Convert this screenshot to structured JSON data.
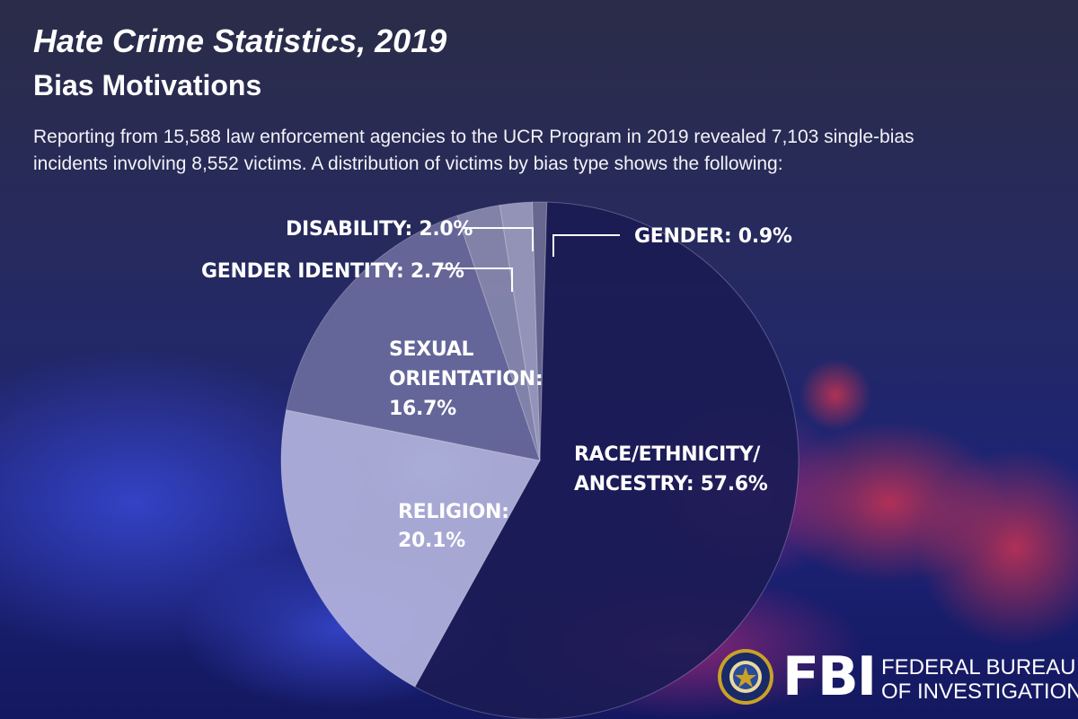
{
  "header": {
    "title": "Hate Crime Statistics, 2019",
    "subtitle": "Bias Motivations",
    "intro_line1": "Reporting from 15,588 law enforcement agencies to the UCR Program in 2019 revealed 7,103 single-bias",
    "intro_line2": "incidents involving 8,552 victims. A distribution of victims by bias type shows the following:"
  },
  "footer": {
    "logo_letters": "FBI",
    "agency_line1": "FEDERAL BUREAU",
    "agency_line2": "OF INVESTIGATION"
  },
  "chart_data": {
    "type": "pie",
    "slices": [
      {
        "label": "GENDER: 0.9%",
        "value": 0.9,
        "color": "#6c6c94"
      },
      {
        "label": "RACE/ETHNICITY/ ANCESTRY: 57.6%",
        "label_lines": [
          "RACE/ETHNICITY/",
          "ANCESTRY: 57.6%"
        ],
        "value": 57.6,
        "color": "#1b1b55"
      },
      {
        "label": "RELIGION: 20.1%",
        "label_lines": [
          "RELIGION:",
          "20.1%"
        ],
        "value": 20.1,
        "color": "#b3b3dc"
      },
      {
        "label": "SEXUAL ORIENTATION: 16.7%",
        "label_lines": [
          "SEXUAL",
          "ORIENTATION:",
          "16.7%"
        ],
        "value": 16.7,
        "color": "#6a6a9c"
      },
      {
        "label": "GENDER IDENTITY: 2.7%",
        "value": 2.7,
        "color": "#8a8ab0"
      },
      {
        "label": "DISABILITY: 2.0%",
        "value": 2.0,
        "color": "#9c9cc0"
      }
    ]
  },
  "colors": {
    "background_top": "#2a2b4a",
    "background_bottom": "#1a1f6a",
    "text": "#ffffff"
  }
}
